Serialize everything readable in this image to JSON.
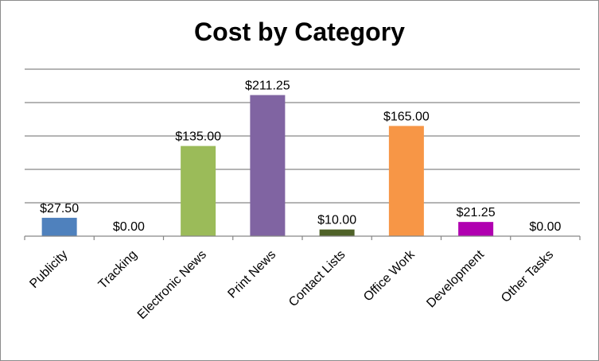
{
  "chart_data": {
    "type": "bar",
    "title": "Cost by Category",
    "xlabel": "",
    "ylabel": "",
    "ylim": [
      0,
      250
    ],
    "ytick_step": 50,
    "y_tick_labels_visible": false,
    "grid": true,
    "legend": "none",
    "categories": [
      "Publicity",
      "Tracking",
      "Electronic News",
      "Print News",
      "Contact Lists",
      "Office Work",
      "Development",
      "Other Tasks"
    ],
    "values": [
      27.5,
      0,
      135,
      211.25,
      10,
      165,
      21.25,
      0
    ],
    "data_labels": [
      "$27.50",
      "$0.00",
      "$135.00",
      "$211.25",
      "$10.00",
      "$165.00",
      "$21.25",
      "$0.00"
    ],
    "colors": [
      "#4f81bd",
      "#c0504d",
      "#9bbb59",
      "#8064a2",
      "#4f6228",
      "#f79646",
      "#b000b0",
      "#4bacc6"
    ]
  }
}
